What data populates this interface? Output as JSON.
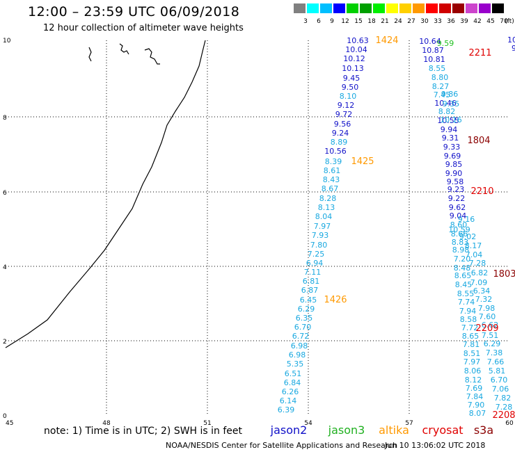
{
  "header": {
    "title": "12:00 – 23:59 UTC 06/09/2018",
    "subtitle": "12 hour collection of altimeter wave heights"
  },
  "legend": {
    "unit": "(ft)",
    "colors": [
      "#808080",
      "#00ffff",
      "#00bfff",
      "#0000ff",
      "#00d000",
      "#00a000",
      "#00ee00",
      "#ffff00",
      "#ffd000",
      "#ff9900",
      "#ff0000",
      "#d00000",
      "#990000",
      "#cc44cc",
      "#9900cc",
      "#000000"
    ],
    "labels": [
      "3",
      "6",
      "9",
      "12",
      "15",
      "18",
      "21",
      "24",
      "27",
      "30",
      "33",
      "36",
      "39",
      "42",
      "45",
      "70"
    ]
  },
  "axes": {
    "x_ticks": [
      "45",
      "48",
      "51",
      "54",
      "57",
      "60"
    ],
    "y_ticks": [
      "0",
      "2",
      "4",
      "6",
      "8",
      "10"
    ]
  },
  "tracks": [
    {
      "name": "jason2-pass-1424-1426",
      "labels": [
        {
          "v": "10.63",
          "c": "#1010c8"
        },
        {
          "v": "10.04",
          "c": "#1010c8"
        },
        {
          "v": "10.12",
          "c": "#1010c8"
        },
        {
          "v": "10.13",
          "c": "#1010c8"
        },
        {
          "v": "9.45",
          "c": "#1010c8"
        },
        {
          "v": "9.50",
          "c": "#1010c8"
        },
        {
          "v": "8.10",
          "c": "#18a8e0"
        },
        {
          "v": "9.12",
          "c": "#1010c8"
        },
        {
          "v": "9.72",
          "c": "#1010c8"
        },
        {
          "v": "9.56",
          "c": "#1010c8"
        },
        {
          "v": "9.24",
          "c": "#1010c8"
        },
        {
          "v": "8.89",
          "c": "#18a8e0"
        },
        {
          "v": "10.56",
          "c": "#1010c8"
        },
        {
          "v": "8.39",
          "c": "#18a8e0"
        },
        {
          "v": "8.61",
          "c": "#18a8e0"
        },
        {
          "v": "8.43",
          "c": "#18a8e0"
        },
        {
          "v": "8.67",
          "c": "#18a8e0"
        },
        {
          "v": "8.28",
          "c": "#18a8e0"
        },
        {
          "v": "8.13",
          "c": "#18a8e0"
        },
        {
          "v": "8.04",
          "c": "#18a8e0"
        },
        {
          "v": "7.97",
          "c": "#18a8e0"
        },
        {
          "v": "7.93",
          "c": "#18a8e0"
        },
        {
          "v": "7.80",
          "c": "#18a8e0"
        },
        {
          "v": "7.25",
          "c": "#18a8e0"
        },
        {
          "v": "6.94",
          "c": "#18a8e0"
        },
        {
          "v": "7.11",
          "c": "#18a8e0"
        },
        {
          "v": "6.81",
          "c": "#18a8e0"
        },
        {
          "v": "6.87",
          "c": "#18a8e0"
        },
        {
          "v": "6.45",
          "c": "#18a8e0"
        },
        {
          "v": "6.29",
          "c": "#18a8e0"
        },
        {
          "v": "6.35",
          "c": "#18a8e0"
        },
        {
          "v": "6.70",
          "c": "#18a8e0"
        },
        {
          "v": "6.72",
          "c": "#18a8e0"
        },
        {
          "v": "6.98",
          "c": "#18a8e0"
        },
        {
          "v": "6.98",
          "c": "#18a8e0"
        },
        {
          "v": "5.35",
          "c": "#18a8e0"
        },
        {
          "v": "6.51",
          "c": "#18a8e0"
        },
        {
          "v": "6.84",
          "c": "#18a8e0"
        },
        {
          "v": "6.26",
          "c": "#18a8e0"
        },
        {
          "v": "6.14",
          "c": "#18a8e0"
        },
        {
          "v": "6.39",
          "c": "#18a8e0"
        }
      ]
    },
    {
      "name": "jason2-pass-2211-2210",
      "labels": [
        {
          "v": "10.64",
          "c": "#1010c8"
        },
        {
          "v": "10.87",
          "c": "#1010c8"
        },
        {
          "v": "10.81",
          "c": "#1010c8"
        },
        {
          "v": "8.55",
          "c": "#18a8e0"
        },
        {
          "v": "8.80",
          "c": "#18a8e0"
        },
        {
          "v": "8.27",
          "c": "#18a8e0"
        },
        {
          "v": "7.45",
          "c": "#18a8e0"
        },
        {
          "v": "10.46",
          "c": "#1010c8"
        },
        {
          "v": "8.82",
          "c": "#18a8e0"
        },
        {
          "v": "10.55",
          "c": "#1010c8"
        },
        {
          "v": "9.94",
          "c": "#1010c8"
        },
        {
          "v": "9.31",
          "c": "#1010c8"
        },
        {
          "v": "9.33",
          "c": "#1010c8"
        },
        {
          "v": "9.69",
          "c": "#1010c8"
        },
        {
          "v": "9.85",
          "c": "#1010c8"
        },
        {
          "v": "9.90",
          "c": "#1010c8"
        },
        {
          "v": "9.58",
          "c": "#1010c8"
        },
        {
          "v": "9.23",
          "c": "#1010c8"
        },
        {
          "v": "9.22",
          "c": "#1010c8"
        },
        {
          "v": "9.62",
          "c": "#1010c8"
        },
        {
          "v": "9.04",
          "c": "#1010c8"
        },
        {
          "v": "8.60",
          "c": "#18a8e0"
        },
        {
          "v": "8.66",
          "c": "#18a8e0"
        },
        {
          "v": "8.83",
          "c": "#18a8e0"
        },
        {
          "v": "8.98",
          "c": "#18a8e0"
        },
        {
          "v": "7.20",
          "c": "#18a8e0"
        },
        {
          "v": "8.48",
          "c": "#18a8e0"
        },
        {
          "v": "8.65",
          "c": "#18a8e0"
        },
        {
          "v": "8.45",
          "c": "#18a8e0"
        },
        {
          "v": "8.55",
          "c": "#18a8e0"
        },
        {
          "v": "7.74",
          "c": "#18a8e0"
        },
        {
          "v": "7.94",
          "c": "#18a8e0"
        },
        {
          "v": "8.58",
          "c": "#18a8e0"
        },
        {
          "v": "7.72",
          "c": "#18a8e0"
        },
        {
          "v": "8.65",
          "c": "#18a8e0"
        },
        {
          "v": "7.81",
          "c": "#18a8e0"
        },
        {
          "v": "8.51",
          "c": "#18a8e0"
        },
        {
          "v": "7.97",
          "c": "#18a8e0"
        },
        {
          "v": "8.06",
          "c": "#18a8e0"
        },
        {
          "v": "8.12",
          "c": "#18a8e0"
        },
        {
          "v": "7.69",
          "c": "#18a8e0"
        },
        {
          "v": "7.84",
          "c": "#18a8e0"
        },
        {
          "v": "7.90",
          "c": "#18a8e0"
        },
        {
          "v": "8.07",
          "c": "#18a8e0"
        }
      ]
    },
    {
      "name": "cryosat-s3a-pass-1804-1803",
      "labels": [
        {
          "v": "9.59",
          "c": "#20c020"
        },
        {
          "v": "9.86",
          "c": "#18a8e0"
        },
        {
          "v": "9.35",
          "c": "#18a8e0"
        },
        {
          "v": "10.16",
          "c": "#18a8e0"
        },
        {
          "v": "9.16",
          "c": "#18a8e0"
        },
        {
          "v": "10.59",
          "c": "#18a8e0"
        },
        {
          "v": "9.02",
          "c": "#18a8e0"
        },
        {
          "v": "8.17",
          "c": "#18a8e0"
        },
        {
          "v": "7.04",
          "c": "#18a8e0"
        },
        {
          "v": "7.28",
          "c": "#18a8e0"
        },
        {
          "v": "6.82",
          "c": "#18a8e0"
        },
        {
          "v": "7.09",
          "c": "#18a8e0"
        },
        {
          "v": "6.34",
          "c": "#18a8e0"
        },
        {
          "v": "7.32",
          "c": "#18a8e0"
        },
        {
          "v": "7.98",
          "c": "#18a8e0"
        },
        {
          "v": "7.60",
          "c": "#18a8e0"
        },
        {
          "v": "6.62",
          "c": "#18a8e0"
        },
        {
          "v": "7.51",
          "c": "#18a8e0"
        },
        {
          "v": "6.29",
          "c": "#18a8e0"
        },
        {
          "v": "7.38",
          "c": "#18a8e0"
        },
        {
          "v": "7.66",
          "c": "#18a8e0"
        },
        {
          "v": "5.81",
          "c": "#18a8e0"
        },
        {
          "v": "6.70",
          "c": "#18a8e0"
        },
        {
          "v": "7.06",
          "c": "#18a8e0"
        },
        {
          "v": "7.82",
          "c": "#18a8e0"
        },
        {
          "v": "7.28",
          "c": "#18a8e0"
        }
      ]
    }
  ],
  "pass_ids": [
    {
      "id": "1424",
      "c": "#ff9900"
    },
    {
      "id": "1425",
      "c": "#ff9900"
    },
    {
      "id": "1426",
      "c": "#ff9900"
    },
    {
      "id": "2211",
      "c": "#e00000"
    },
    {
      "id": "1804",
      "c": "#8b0000"
    },
    {
      "id": "2210",
      "c": "#e00000"
    },
    {
      "id": "1803",
      "c": "#8b0000"
    },
    {
      "id": "2209",
      "c": "#e00000"
    },
    {
      "id": "2208",
      "c": "#e00000"
    }
  ],
  "edge_labels": [
    "10",
    "9"
  ],
  "footer": {
    "note": "note:  1) Time is in UTC;  2) SWH is in feet",
    "satellites": [
      {
        "name": "jason2",
        "c": "#1010c8"
      },
      {
        "name": "jason3",
        "c": "#20b020"
      },
      {
        "name": "altika",
        "c": "#ff9900"
      },
      {
        "name": "cryosat",
        "c": "#e00000"
      },
      {
        "name": "s3a",
        "c": "#8b0000"
      }
    ],
    "credit": "NOAA/NESDIS Center for Satellite Applications and Research",
    "timestamp": "Jun 10 13:06:02 UTC 2018"
  }
}
